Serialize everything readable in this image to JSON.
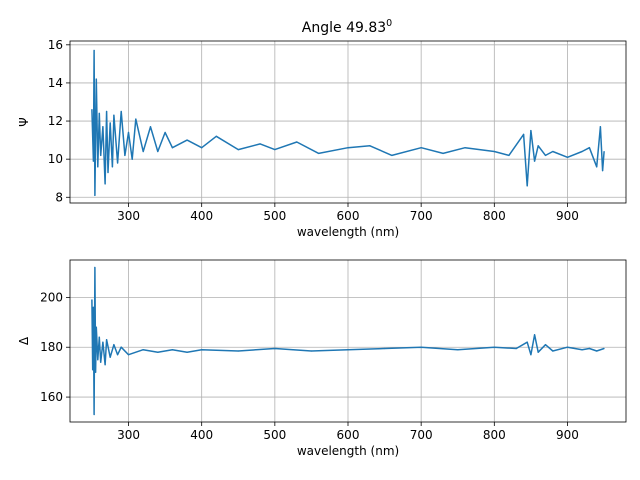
{
  "title": {
    "main": "Angle 49.83",
    "superscript": "0"
  },
  "colors": {
    "line": "#1f77b4",
    "grid": "#b0b0b0",
    "axes": "#000000"
  },
  "chart_data": [
    {
      "type": "line",
      "ylabel": "Ψ",
      "xlabel": "wavelength (nm)",
      "xlim": [
        220,
        980
      ],
      "ylim": [
        7.7,
        16.2
      ],
      "xticks": [
        300,
        400,
        500,
        600,
        700,
        800,
        900
      ],
      "yticks": [
        8,
        10,
        12,
        14,
        16
      ],
      "grid": true,
      "series": [
        {
          "x": [
            250,
            252,
            253,
            254,
            256,
            258,
            260,
            262,
            265,
            268,
            270,
            272,
            275,
            278,
            280,
            285,
            290,
            295,
            300,
            305,
            310,
            320,
            330,
            340,
            350,
            360,
            380,
            400,
            420,
            450,
            480,
            500,
            530,
            560,
            600,
            630,
            660,
            700,
            730,
            760,
            800,
            820,
            840,
            845,
            850,
            855,
            860,
            870,
            880,
            900,
            920,
            930,
            940,
            945,
            948,
            950
          ],
          "y": [
            12.6,
            9.9,
            15.7,
            8.1,
            14.2,
            9.6,
            12.4,
            10.2,
            11.7,
            8.7,
            12.5,
            9.3,
            11.9,
            9.6,
            12.3,
            9.8,
            12.5,
            10.2,
            11.4,
            10.0,
            12.1,
            10.4,
            11.7,
            10.4,
            11.4,
            10.6,
            11.0,
            10.6,
            11.2,
            10.5,
            10.8,
            10.5,
            10.9,
            10.3,
            10.6,
            10.7,
            10.2,
            10.6,
            10.3,
            10.6,
            10.4,
            10.2,
            11.3,
            8.6,
            11.5,
            9.9,
            10.7,
            10.2,
            10.4,
            10.1,
            10.4,
            10.6,
            9.6,
            11.7,
            9.4,
            10.4
          ]
        }
      ]
    },
    {
      "type": "line",
      "ylabel": "Δ",
      "xlabel": "wavelength (nm)",
      "xlim": [
        220,
        980
      ],
      "ylim": [
        150,
        215
      ],
      "xticks": [
        300,
        400,
        500,
        600,
        700,
        800,
        900
      ],
      "yticks": [
        160,
        180,
        200
      ],
      "grid": true,
      "series": [
        {
          "x": [
            250,
            251,
            252,
            253,
            254,
            255,
            256,
            258,
            260,
            262,
            265,
            268,
            270,
            275,
            280,
            285,
            290,
            300,
            320,
            340,
            360,
            380,
            400,
            450,
            500,
            550,
            600,
            650,
            700,
            750,
            800,
            830,
            845,
            850,
            855,
            860,
            870,
            880,
            900,
            920,
            930,
            940,
            950
          ],
          "y": [
            199,
            171,
            196,
            153,
            212,
            170,
            188,
            175,
            184,
            174,
            182,
            173,
            183,
            176,
            181,
            177,
            180,
            177,
            179,
            178,
            179,
            178,
            179,
            178.5,
            179.5,
            178.5,
            179,
            179.5,
            180,
            179,
            180,
            179.5,
            182,
            177,
            185,
            178,
            181,
            178.5,
            180,
            179,
            179.5,
            178.5,
            179.5
          ]
        }
      ]
    }
  ]
}
